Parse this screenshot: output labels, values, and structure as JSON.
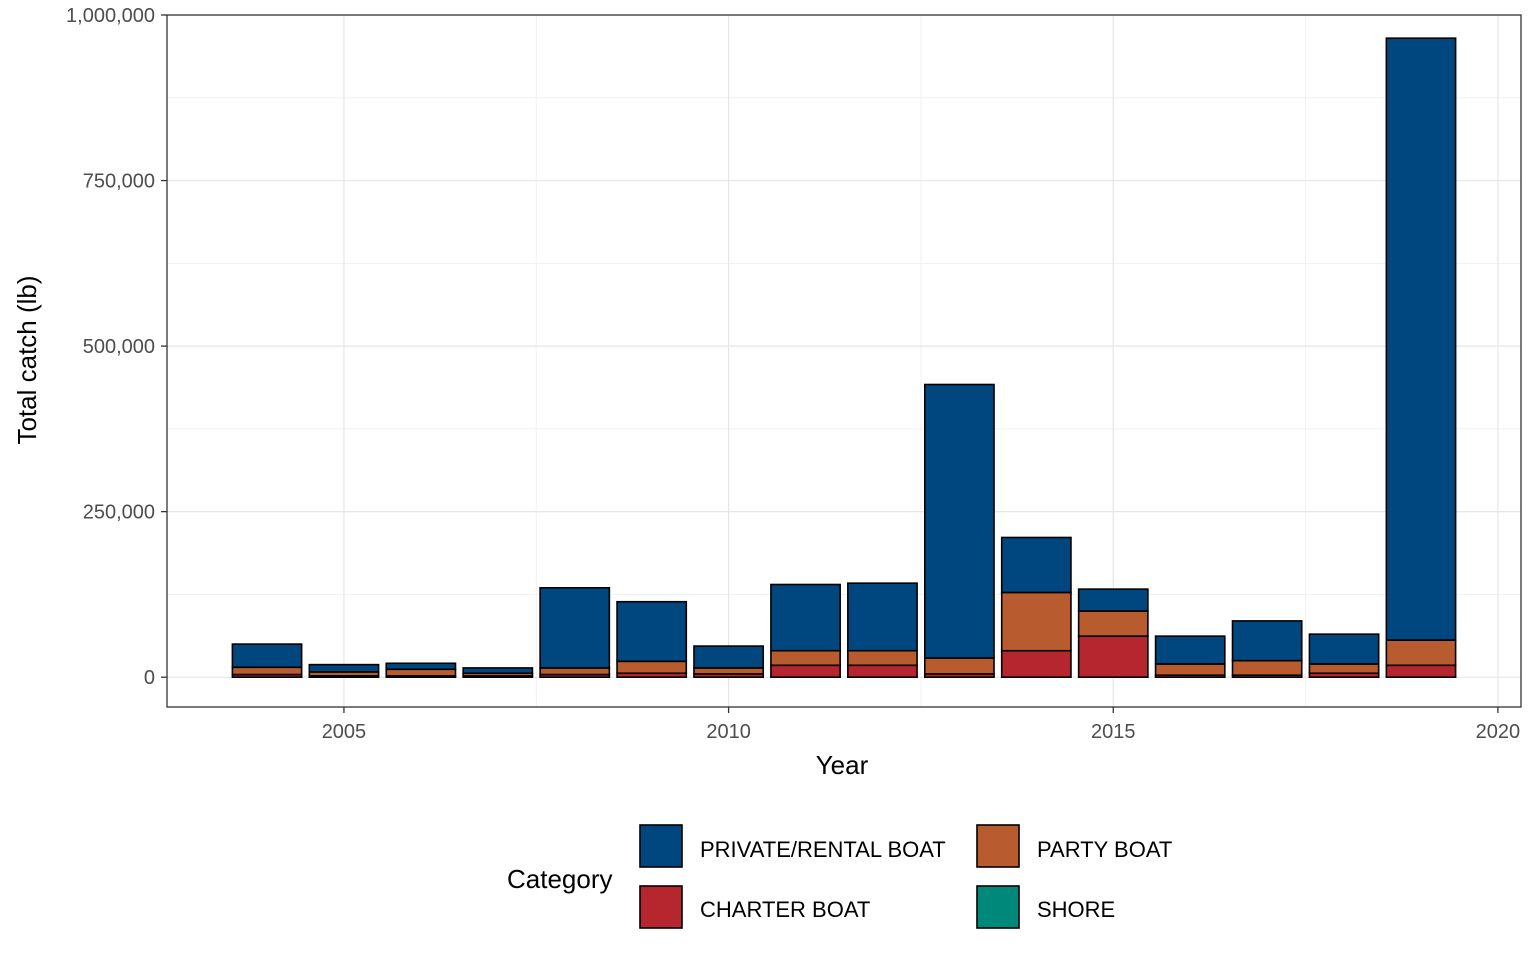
{
  "chart_data": {
    "type": "bar",
    "stacked": true,
    "xlabel": "Year",
    "ylabel": "Total catch (lb)",
    "x": [
      2004,
      2005,
      2006,
      2007,
      2008,
      2009,
      2010,
      2011,
      2012,
      2013,
      2014,
      2015,
      2016,
      2017,
      2018,
      2019
    ],
    "xlim": [
      2002.7,
      2020.3
    ],
    "ylim": [
      -45000,
      1000000
    ],
    "x_ticks": [
      2005,
      2010,
      2015,
      2020
    ],
    "x_tick_labels": [
      "2005",
      "2010",
      "2015",
      "2020"
    ],
    "y_ticks": [
      0,
      250000,
      500000,
      750000,
      1000000
    ],
    "y_tick_labels": [
      "0",
      "250,000",
      "500,000",
      "750,000",
      "1,000,000"
    ],
    "grid": true,
    "legend_position": "bottom",
    "legend_title": "Category",
    "series": [
      {
        "name": "SHORE",
        "color": "#00897b",
        "values": [
          0,
          0,
          0,
          0,
          0,
          0,
          0,
          0,
          0,
          0,
          0,
          0,
          0,
          0,
          0,
          0
        ]
      },
      {
        "name": "CHARTER BOAT",
        "color": "#b5262e",
        "values": [
          4000,
          2000,
          2000,
          2000,
          4000,
          6000,
          5000,
          18000,
          18000,
          5000,
          40000,
          62000,
          3000,
          3000,
          6000,
          18000
        ]
      },
      {
        "name": "PARTY BOAT",
        "color": "#b85c2f",
        "values": [
          11000,
          6000,
          10000,
          4000,
          10000,
          18000,
          9000,
          22000,
          22000,
          24000,
          88000,
          38000,
          17000,
          22000,
          14000,
          38000
        ]
      },
      {
        "name": "PRIVATE/RENTAL BOAT",
        "color": "#00477f",
        "values": [
          35000,
          11000,
          9000,
          8000,
          121000,
          90000,
          33000,
          100000,
          102000,
          413000,
          83000,
          33000,
          42000,
          60000,
          45000,
          909000
        ]
      }
    ],
    "legend_order": [
      "PRIVATE/RENTAL BOAT",
      "PARTY BOAT",
      "CHARTER BOAT",
      "SHORE"
    ]
  }
}
